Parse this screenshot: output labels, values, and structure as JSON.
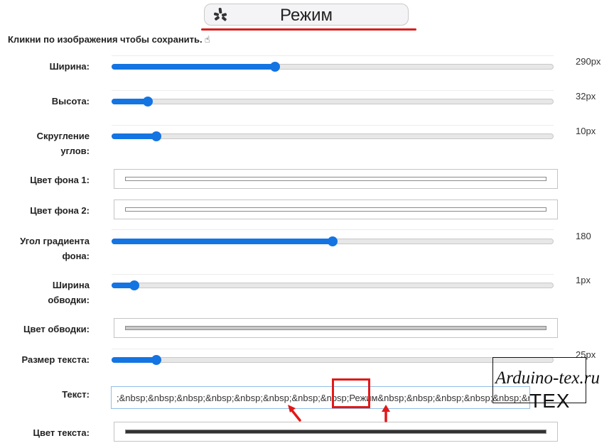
{
  "preview": {
    "label": "Режим",
    "icon": "yelp-style-logo-icon"
  },
  "hint": {
    "text": "Кликни по изображения чтобы сохранить.",
    "icon": "pointer-hand-icon"
  },
  "controls": {
    "width": {
      "label": "Ширина:",
      "value": "290px",
      "level": 0.37
    },
    "height": {
      "label": "Высота:",
      "value": "32px",
      "level": 0.08
    },
    "radius": {
      "label_line1": "Скругление",
      "label_line2": "углов:",
      "value": "10px",
      "level": 0.1
    },
    "bg1": {
      "label": "Цвет фона 1:"
    },
    "bg2": {
      "label": "Цвет фона 2:"
    },
    "gradient_angle": {
      "label_line1": "Угол градиента",
      "label_line2": "фона:",
      "value": "180",
      "level": 0.5
    },
    "border_width": {
      "label_line1": "Ширина",
      "label_line2": "обводки:",
      "value": "1px",
      "level": 0.05
    },
    "border_color": {
      "label": "Цвет обводки:"
    },
    "text_size": {
      "label": "Размер текста:",
      "value": "25px",
      "level": 0.1
    },
    "text": {
      "label": "Текст:",
      "value": ";&nbsp;&nbsp;&nbsp;&nbsp;&nbsp;&nbsp;&nbsp;&nbsp;Режим&nbsp;&nbsp;&nbsp;&nbsp;&nbsp;&nbsp;&nbsp;&nbsp;&nb"
    },
    "text_color": {
      "label": "Цвет текста:"
    }
  },
  "colors": {
    "accent": "#1474e2",
    "highlight": "#e21818",
    "bg1_swatch": "#ffffff",
    "bg2_swatch": "#ffffff",
    "border_swatch": "#c8c8c8",
    "text_swatch": "#333333"
  },
  "watermark": {
    "site": "Arduino-tex.ru",
    "mark": "TEX"
  }
}
